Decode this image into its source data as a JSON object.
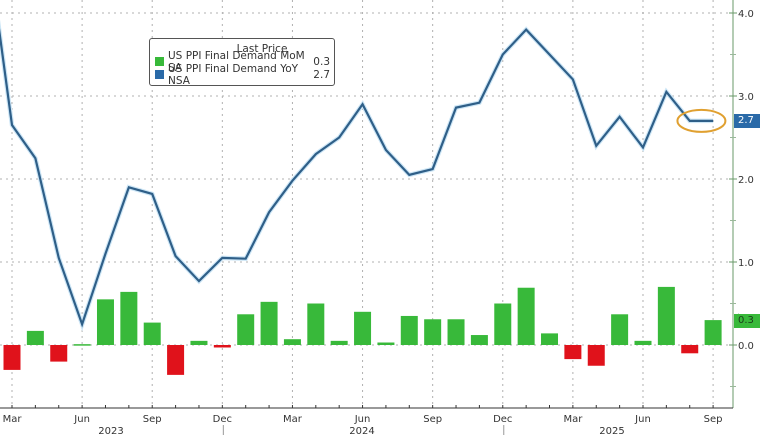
{
  "legend": {
    "title": "Last Price",
    "items": [
      {
        "label": "US PPI Final Demand MoM SA",
        "value": "0.3",
        "color": "#38b93a"
      },
      {
        "label": "US PPI Final Demand YoY NSA",
        "value": "2.7",
        "color": "#2a6aa8"
      }
    ]
  },
  "tags": {
    "yoy_last": "2.7",
    "mom_last": "0.3"
  },
  "chart_data": {
    "type": "bar+line",
    "title": "",
    "xlabel": "",
    "ylabel": "",
    "ylim": [
      -0.8,
      4.15
    ],
    "yticks": [
      0.0,
      1.0,
      2.0,
      3.0,
      4.0
    ],
    "ytick_labels": [
      "0.0",
      "1.0",
      "2.0",
      "3.0",
      "4.0"
    ],
    "xtick_labels": [
      "Mar",
      "Jun",
      "Sep",
      "Dec",
      "Mar",
      "Jun",
      "Sep",
      "Dec",
      "Mar",
      "Jun",
      "Sep"
    ],
    "year_labels": [
      "2023",
      "2024",
      "2025"
    ],
    "grid": true,
    "legend_position": "upper-left-inset",
    "categories": [
      "Mar 2023",
      "Apr 2023",
      "May 2023",
      "Jun 2023",
      "Jul 2023",
      "Aug 2023",
      "Sep 2023",
      "Oct 2023",
      "Nov 2023",
      "Dec 2023",
      "Jan 2024",
      "Feb 2024",
      "Mar 2024",
      "Apr 2024",
      "May 2024",
      "Jun 2024",
      "Jul 2024",
      "Aug 2024",
      "Sep 2024",
      "Oct 2024",
      "Nov 2024",
      "Dec 2024",
      "Jan 2025",
      "Feb 2025",
      "Mar 2025",
      "Apr 2025",
      "May 2025",
      "Jun 2025",
      "Jul 2025",
      "Aug 2025",
      "Sep 2025"
    ],
    "series": [
      {
        "name": "US PPI Final Demand MoM SA",
        "type": "bar",
        "color_pos": "#38b93a",
        "color_neg": "#e0121b",
        "values": [
          -0.3,
          0.17,
          -0.2,
          0.01,
          0.55,
          0.64,
          0.27,
          -0.36,
          0.05,
          -0.03,
          0.37,
          0.52,
          0.07,
          0.5,
          0.05,
          0.4,
          0.03,
          0.35,
          0.31,
          0.31,
          0.12,
          0.5,
          0.69,
          0.14,
          -0.17,
          -0.25,
          0.37,
          0.05,
          0.7,
          -0.1,
          0.3
        ]
      },
      {
        "name": "US PPI Final Demand YoY NSA",
        "type": "line",
        "color": "#2f5f88",
        "values": [
          2.65,
          2.25,
          1.05,
          0.25,
          1.1,
          1.9,
          1.82,
          1.07,
          0.77,
          1.05,
          1.04,
          1.6,
          1.98,
          2.3,
          2.5,
          2.9,
          2.35,
          2.05,
          2.12,
          2.86,
          2.92,
          3.5,
          3.8,
          3.5,
          3.2,
          2.4,
          2.75,
          2.38,
          3.05,
          2.7,
          2.7
        ]
      }
    ],
    "annotations": [
      {
        "type": "ellipse",
        "color": "#e0a030",
        "around": [
          "Aug 2025",
          "Sep 2025"
        ],
        "series": "US PPI Final Demand YoY NSA"
      }
    ]
  }
}
